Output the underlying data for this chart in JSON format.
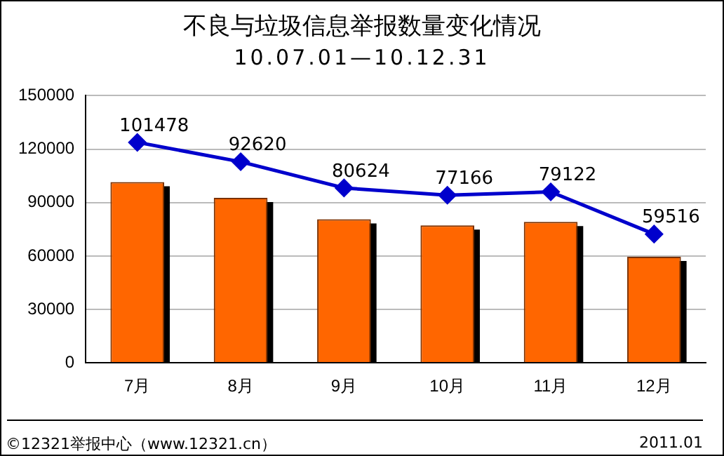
{
  "chart_data": {
    "type": "bar",
    "title": "不良与垃圾信息举报数量变化情况",
    "subtitle": "10.07.01—10.12.31",
    "categories": [
      "7月",
      "8月",
      "9月",
      "10月",
      "11月",
      "12月"
    ],
    "series": [
      {
        "color": "#ff6600",
        "values": [
          101478,
          92620,
          80624,
          77166,
          79122,
          59516
        ]
      },
      {
        "type": "line",
        "color": "#0000cc",
        "marker": "diamond",
        "values": [
          123800,
          112900,
          98200,
          94100,
          96000,
          72300
        ]
      }
    ],
    "annotations": [
      {
        "text": "101478",
        "x": "7月",
        "y": 123800
      },
      {
        "text": "92620",
        "x": "8月",
        "y": 112900
      },
      {
        "text": "80624",
        "x": "9月",
        "y": 98200
      },
      {
        "text": "77166",
        "x": "10月",
        "y": 94100
      },
      {
        "text": "79122",
        "x": "11月",
        "y": 96000
      },
      {
        "text": "59516",
        "x": "12月",
        "y": 72300
      },
      "©12321举报中心（www.12321.cn）",
      "2011.01"
    ],
    "ylim": [
      0,
      150000
    ],
    "yticks": [
      0,
      30000,
      60000,
      90000,
      120000,
      150000
    ],
    "grid": "y",
    "legend": false
  }
}
